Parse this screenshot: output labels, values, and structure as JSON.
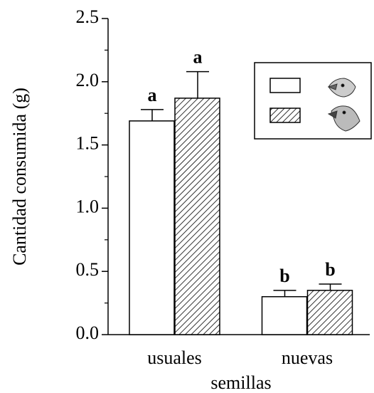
{
  "chart_data": {
    "type": "bar",
    "y_label": "Cantidad consumida (g)",
    "x_label": "semillas",
    "categories": [
      "usuales",
      "nuevas"
    ],
    "series": [
      {
        "color": "#ffffff",
        "hatch": false,
        "values": [
          1.69,
          0.3
        ],
        "errors": [
          0.09,
          0.05
        ],
        "annotations": [
          "a",
          "b"
        ]
      },
      {
        "color": "#ffffff",
        "hatch": true,
        "values": [
          1.87,
          0.35
        ],
        "errors": [
          0.21,
          0.05
        ],
        "annotations": [
          "a",
          "b"
        ]
      }
    ],
    "ylim": [
      0,
      2.5
    ],
    "yticks": [
      {
        "value": 0,
        "label": "0.0"
      },
      0.5,
      {
        "value": 1,
        "label": "1.0"
      },
      1.5,
      {
        "value": 2,
        "label": "2.0"
      },
      2.5
    ],
    "yticks_minor": [
      0.25,
      0.75,
      1.25,
      1.75,
      2.25
    ],
    "legend": "top-right"
  }
}
